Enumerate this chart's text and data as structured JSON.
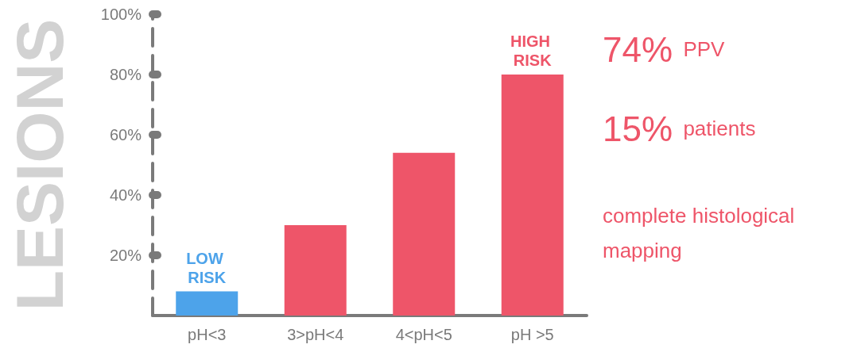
{
  "chart_data": {
    "type": "bar",
    "ylabel": "LESIONS",
    "categories": [
      "pH<3",
      "3>pH<4",
      "4<pH<5",
      "pH >5"
    ],
    "values": [
      8,
      30,
      54,
      80
    ],
    "colors": [
      "#4da3ea",
      "#ee5569",
      "#ee5569",
      "#ee5569"
    ],
    "ylim": [
      0,
      100
    ],
    "yticks": [
      {
        "value": 20,
        "label": "20%"
      },
      {
        "value": 40,
        "label": "40%"
      },
      {
        "value": 60,
        "label": "60%"
      },
      {
        "value": 80,
        "label": "80%"
      },
      {
        "value": 100,
        "label": "100%"
      }
    ],
    "grid": false,
    "annotations": [
      {
        "text": "LOW RISK",
        "x": "pH<3",
        "y": 8
      },
      {
        "text": "HIGH RISK",
        "x": "pH >5",
        "y": 80
      },
      "74% PPV",
      "15% patients",
      "complete histological mapping"
    ]
  }
}
